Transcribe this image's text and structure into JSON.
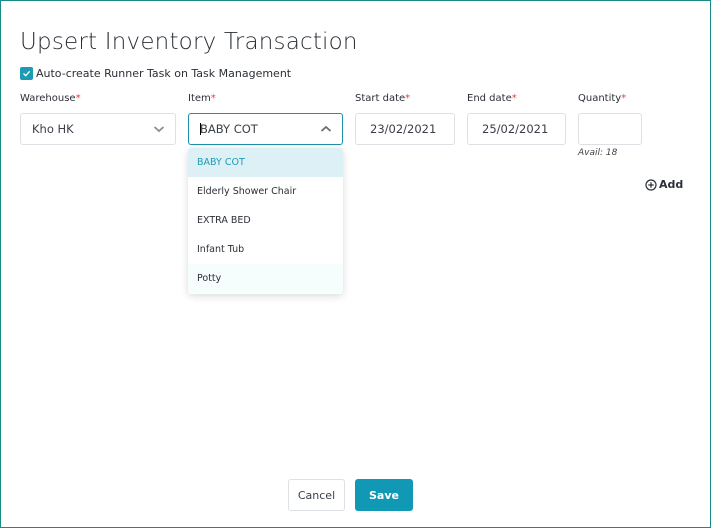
{
  "title": "Upsert Inventory Transaction",
  "auto_create": {
    "label": "Auto-create Runner Task on Task Management",
    "checked": true
  },
  "fields": {
    "warehouse": {
      "label": "Warehouse",
      "value": "Kho HK"
    },
    "item": {
      "label": "Item",
      "value": "BABY COT"
    },
    "start_date": {
      "label": "Start date",
      "value": "23/02/2021"
    },
    "end_date": {
      "label": "End date",
      "value": "25/02/2021"
    },
    "quantity": {
      "label": "Quantity",
      "value": "",
      "avail": "Avail: 18"
    }
  },
  "required_mark": "*",
  "item_options": [
    "BABY COT",
    "Elderly Shower Chair",
    "EXTRA BED",
    "Infant Tub",
    "Potty"
  ],
  "add_label": "Add",
  "buttons": {
    "cancel": "Cancel",
    "save": "Save"
  },
  "colors": {
    "accent": "#1198b4",
    "required": "#e04444"
  }
}
